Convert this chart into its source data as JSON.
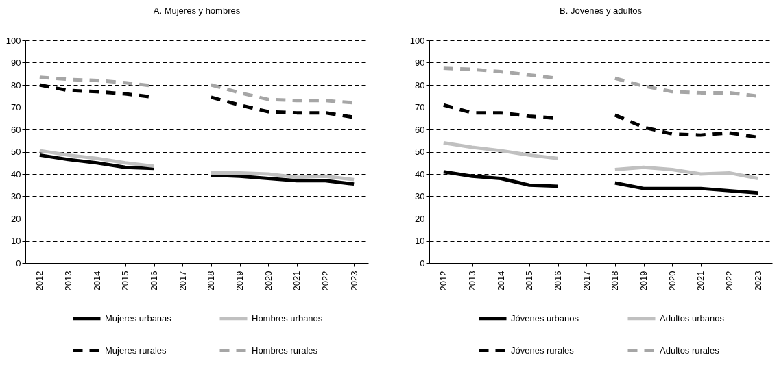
{
  "chart_data": [
    {
      "type": "line",
      "title": "A. Mujeres y hombres",
      "categories": [
        "2012",
        "2013",
        "2014",
        "2015",
        "2016",
        "2017",
        "2018",
        "2019",
        "2020",
        "2021",
        "2022",
        "2023"
      ],
      "ylim": [
        0,
        100
      ],
      "yticks": [
        0,
        10,
        20,
        30,
        40,
        50,
        60,
        70,
        80,
        90,
        100
      ],
      "grid": "y",
      "legend": "bottom",
      "marker": "none",
      "series": [
        {
          "name": "Mujeres urbanas",
          "color": "#000000",
          "line_style": "solid",
          "values": [
            48.5,
            46.5,
            45,
            43,
            42.5,
            null,
            39.5,
            39,
            38,
            37,
            37,
            35.5
          ]
        },
        {
          "name": "Hombres urbanos",
          "color": "#c0c0c0",
          "line_style": "solid",
          "values": [
            50.5,
            48.5,
            47,
            45,
            43.5,
            null,
            40.5,
            40.5,
            40,
            38.5,
            39,
            37.5
          ]
        },
        {
          "name": "Mujeres rurales",
          "color": "#000000",
          "line_style": "dashed",
          "values": [
            80,
            77.5,
            77,
            76,
            74.5,
            null,
            74.5,
            71,
            68,
            67.5,
            67.5,
            65.5
          ]
        },
        {
          "name": "Hombres rurales",
          "color": "#a6a6a6",
          "line_style": "dashed",
          "values": [
            83.5,
            82.5,
            82,
            81,
            79.5,
            null,
            80,
            76.5,
            73.5,
            73,
            73,
            72
          ]
        }
      ]
    },
    {
      "type": "line",
      "title": "B. Jóvenes y adultos",
      "categories": [
        "2012",
        "2013",
        "2014",
        "2015",
        "2016",
        "2017",
        "2018",
        "2019",
        "2020",
        "2021",
        "2022",
        "2023"
      ],
      "ylim": [
        0,
        100
      ],
      "yticks": [
        0,
        10,
        20,
        30,
        40,
        50,
        60,
        70,
        80,
        90,
        100
      ],
      "grid": "y",
      "legend": "bottom",
      "marker": "none",
      "series": [
        {
          "name": "Jóvenes urbanos",
          "color": "#000000",
          "line_style": "solid",
          "values": [
            41,
            39,
            38,
            35,
            34.5,
            null,
            36,
            33.5,
            33.5,
            33.5,
            32.5,
            31.5
          ]
        },
        {
          "name": "Adultos urbanos",
          "color": "#c0c0c0",
          "line_style": "solid",
          "values": [
            54,
            52,
            50.5,
            48.5,
            47,
            null,
            42,
            43,
            42,
            40,
            40.5,
            38
          ]
        },
        {
          "name": "Jóvenes rurales",
          "color": "#000000",
          "line_style": "dashed",
          "values": [
            71,
            67.5,
            67.5,
            66,
            65,
            null,
            66.5,
            61,
            58,
            57.5,
            58.5,
            56.5
          ]
        },
        {
          "name": "Adultos rurales",
          "color": "#a6a6a6",
          "line_style": "dashed",
          "values": [
            87.5,
            87,
            86,
            84.5,
            83,
            null,
            83,
            79.5,
            77,
            76.5,
            76.5,
            75
          ]
        }
      ]
    }
  ]
}
